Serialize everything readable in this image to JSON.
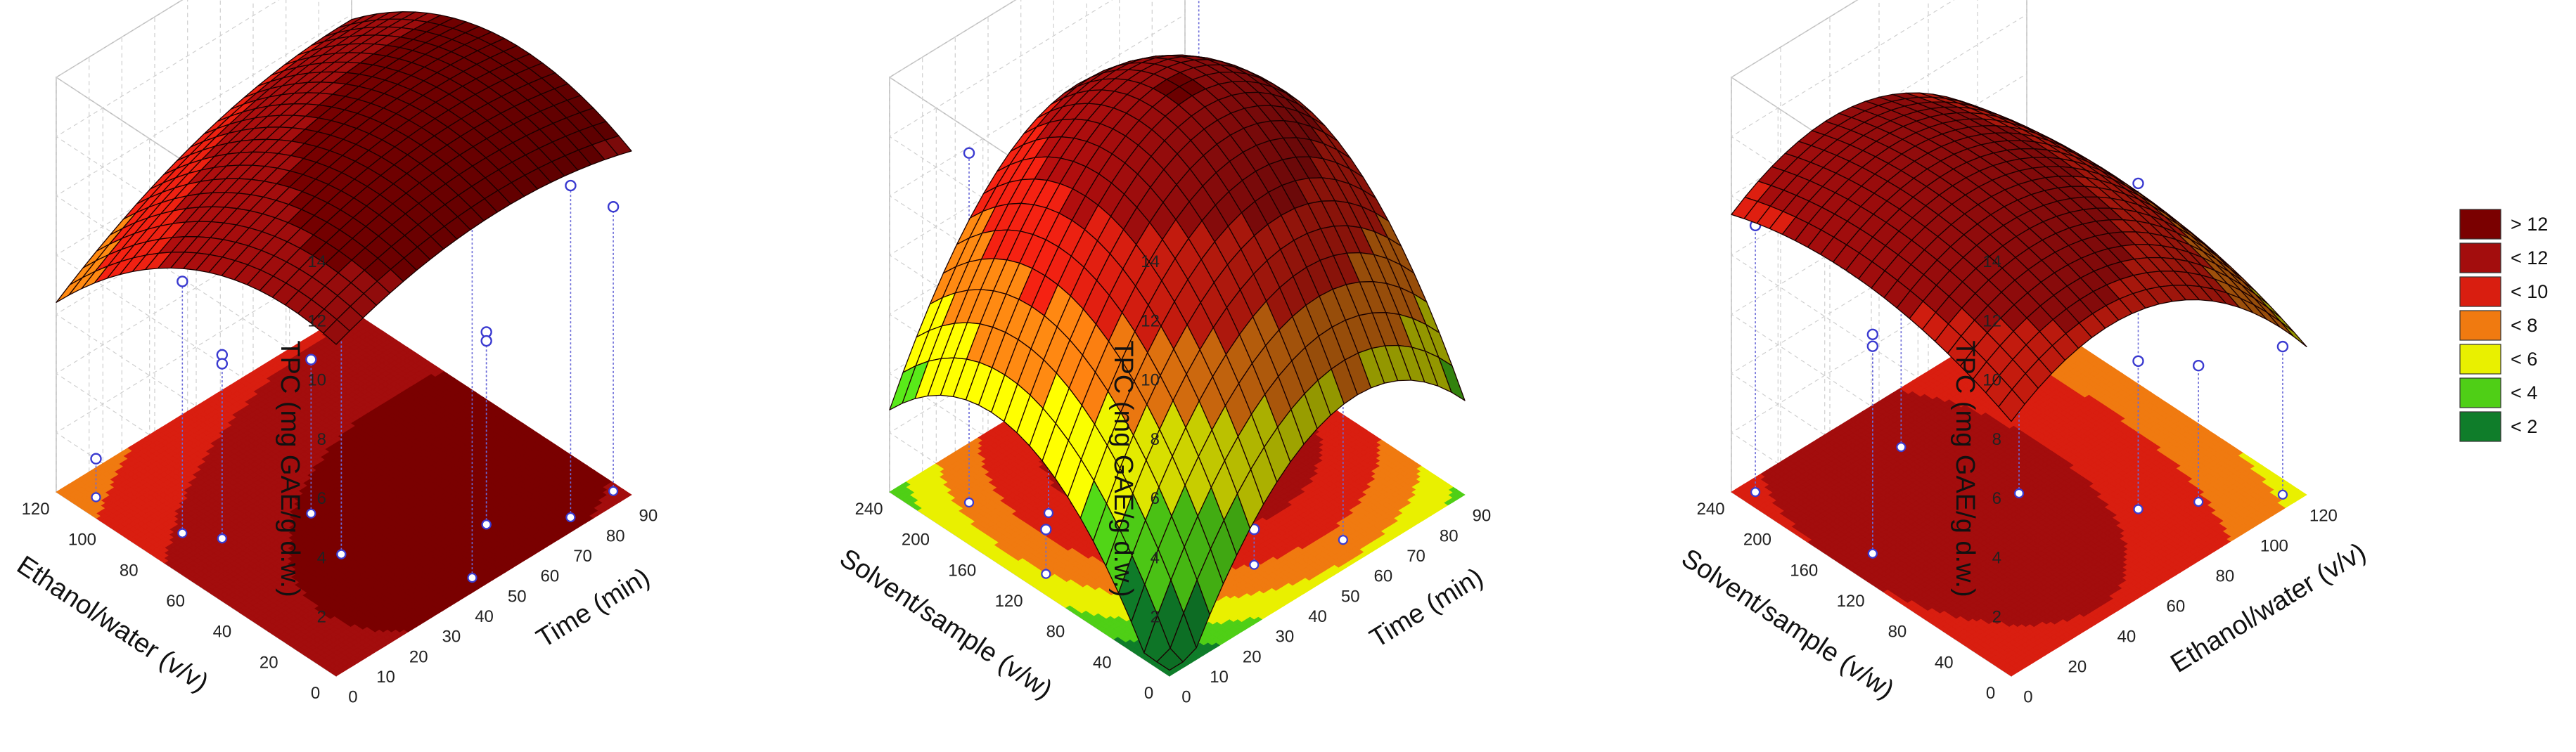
{
  "legend": {
    "items": [
      {
        "label": "> 12",
        "color": "#7a0000"
      },
      {
        "label": "< 12",
        "color": "#a30d0d"
      },
      {
        "label": "< 10",
        "color": "#d91e10"
      },
      {
        "label": "< 8",
        "color": "#f07a10"
      },
      {
        "label": "< 6",
        "color": "#e9f000"
      },
      {
        "label": "< 4",
        "color": "#4fcf16"
      },
      {
        "label": "< 2",
        "color": "#0f7d2a"
      }
    ]
  },
  "chart_data": [
    {
      "type": "surface",
      "zlabel": "TPC (mg GAE/g d.w.)",
      "xlabel": "Time (min)",
      "ylabel": "Ethanol/water (v/v)",
      "xticks": [
        "0",
        "10",
        "20",
        "30",
        "40",
        "50",
        "60",
        "70",
        "80",
        "90"
      ],
      "yticks": [
        "0",
        "20",
        "40",
        "60",
        "80",
        "100",
        "120"
      ],
      "zticks": [
        "2",
        "4",
        "6",
        "8",
        "10",
        "12",
        "14"
      ],
      "xlim": [
        0,
        90
      ],
      "ylim": [
        0,
        120
      ],
      "zlim": [
        0,
        14
      ],
      "model": {
        "c": 11.2,
        "bx": 0.045,
        "by": 0.02,
        "bxx": -0.00045,
        "byy": -0.0005,
        "bxy": 0.00028
      },
      "points": [
        {
          "x": 5,
          "y": 110,
          "z": 1.3
        },
        {
          "x": 10,
          "y": 80,
          "z": 8.5
        },
        {
          "x": 15,
          "y": 70,
          "z": 6.2
        },
        {
          "x": 15,
          "y": 70,
          "z": 5.9
        },
        {
          "x": 30,
          "y": 40,
          "z": 12.4
        },
        {
          "x": 30,
          "y": 40,
          "z": 12.7
        },
        {
          "x": 45,
          "y": 5,
          "z": 13.6
        },
        {
          "x": 60,
          "y": 20,
          "z": 6.5
        },
        {
          "x": 60,
          "y": 20,
          "z": 6.2
        },
        {
          "x": 75,
          "y": 5,
          "z": 11.2
        },
        {
          "x": 88,
          "y": 5,
          "z": 9.6
        },
        {
          "x": 35,
          "y": 60,
          "z": 5.2
        }
      ]
    },
    {
      "type": "surface",
      "zlabel": "TPC (mg GAE/g d.w.)",
      "xlabel": "Time (min)",
      "ylabel": "Solvent/sample (v/w)",
      "xticks": [
        "0",
        "10",
        "20",
        "30",
        "40",
        "50",
        "60",
        "70",
        "80",
        "90"
      ],
      "yticks": [
        "0",
        "40",
        "80",
        "120",
        "160",
        "200",
        "240"
      ],
      "zticks": [
        "2",
        "4",
        "6",
        "8",
        "10",
        "12",
        "14"
      ],
      "xlim": [
        0,
        90
      ],
      "ylim": [
        0,
        240
      ],
      "zlim": [
        0,
        14
      ],
      "model": {
        "c": -1.5,
        "bx": 0.25,
        "by": 0.085,
        "bxx": -0.0022,
        "byy": -0.00028,
        "bxy": 0.0
      },
      "points": [
        {
          "x": 10,
          "y": 200,
          "z": 11.8
        },
        {
          "x": 20,
          "y": 160,
          "z": 8.3
        },
        {
          "x": 45,
          "y": 120,
          "z": 10.5
        },
        {
          "x": 80,
          "y": 200,
          "z": 12.4
        },
        {
          "x": 60,
          "y": 20,
          "z": 8.5
        },
        {
          "x": 40,
          "y": 40,
          "z": 1.2
        },
        {
          "x": 5,
          "y": 120,
          "z": 1.5
        }
      ]
    },
    {
      "type": "surface",
      "zlabel": "TPC (mg GAE/g d.w.)",
      "xlabel": "Ethanol/water (v/v)",
      "ylabel": "Solvent/sample (v/w)",
      "xticks": [
        "0",
        "20",
        "40",
        "60",
        "80",
        "100",
        "120"
      ],
      "yticks": [
        "0",
        "40",
        "80",
        "120",
        "160",
        "200",
        "240"
      ],
      "zticks": [
        "2",
        "4",
        "6",
        "8",
        "10",
        "12",
        "14"
      ],
      "xlim": [
        0,
        120
      ],
      "ylim": [
        0,
        240
      ],
      "zlim": [
        0,
        14
      ],
      "model": {
        "c": 8.6,
        "bx": 0.06,
        "by": 0.02,
        "bxx": -0.00075,
        "byy": -7e-05,
        "bxy": 0.0
      },
      "points": [
        {
          "x": 5,
          "y": 230,
          "z": 9.0
        },
        {
          "x": 10,
          "y": 140,
          "z": 7.4
        },
        {
          "x": 10,
          "y": 140,
          "z": 7.0
        },
        {
          "x": 50,
          "y": 200,
          "z": 11.6
        },
        {
          "x": 80,
          "y": 60,
          "z": 11.0
        },
        {
          "x": 80,
          "y": 60,
          "z": 5.0
        },
        {
          "x": 95,
          "y": 40,
          "z": 4.6
        },
        {
          "x": 115,
          "y": 10,
          "z": 5.0
        },
        {
          "x": 60,
          "y": 120,
          "z": 4.3
        }
      ]
    }
  ]
}
